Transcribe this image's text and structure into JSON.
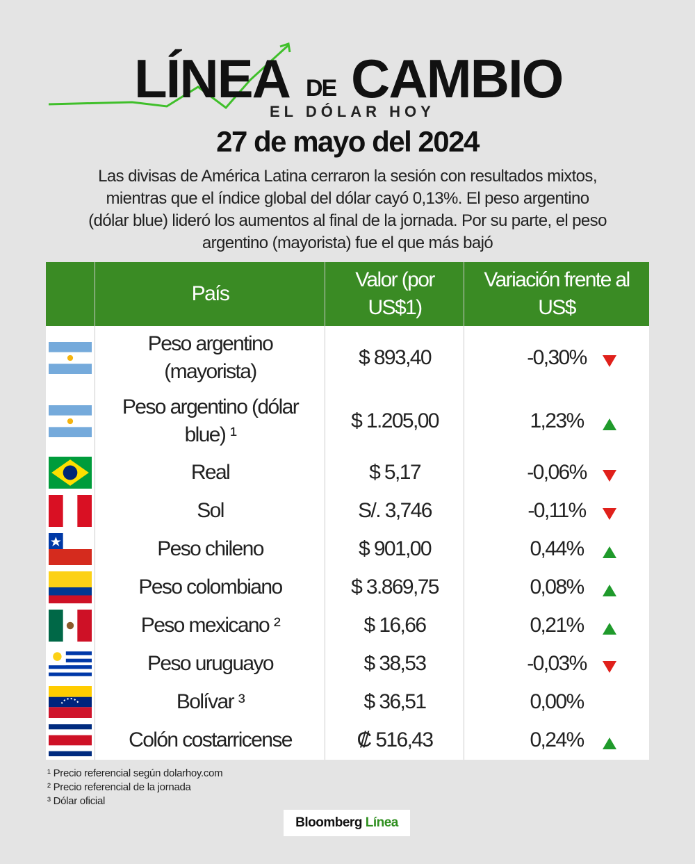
{
  "header": {
    "logo": {
      "word1": "LÍNEA",
      "word2": "DE",
      "word3": "CAMBIO",
      "tagline": "EL DÓLAR HOY"
    },
    "date": "27 de mayo del 2024",
    "description": "Las divisas de América Latina cerraron la sesión con resultados mixtos, mientras que el índice global del dólar cayó 0,13%. El peso argentino (dólar blue) lideró los aumentos al final de la jornada. Por su parte, el peso argentino (mayorista) fue el que más bajó"
  },
  "table": {
    "columns": [
      "País",
      "Valor (por US$1)",
      "Variación frente al US$"
    ],
    "rows": [
      [
        "Peso argentino (mayorista)",
        "$ 893,40",
        "-0,30%"
      ],
      [
        "Peso argentino (dólar blue) ¹",
        "$ 1.205,00",
        "1,23%"
      ],
      [
        "Real",
        "$ 5,17",
        "-0,06%"
      ],
      [
        "Sol",
        "S/. 3,746",
        "-0,11%"
      ],
      [
        "Peso chileno",
        "$ 901,00",
        "0,44%"
      ],
      [
        "Peso colombiano",
        "$ 3.869,75",
        "0,08%"
      ],
      [
        "Peso mexicano ²",
        "$ 16,66",
        "0,21%"
      ],
      [
        "Peso uruguayo",
        "$ 38,53",
        "-0,03%"
      ],
      [
        "Bolívar ³",
        "$ 36,51",
        "0,00%"
      ],
      [
        "Colón costarricense",
        "₡ 516,43",
        "0,24%"
      ]
    ]
  },
  "footnotes": [
    "¹ Precio referencial según dolarhoy.com",
    "² Precio referencial de la jornada",
    "³ Dólar oficial"
  ],
  "brand": {
    "name": "Bloomberg",
    "suffix": "Línea"
  }
}
